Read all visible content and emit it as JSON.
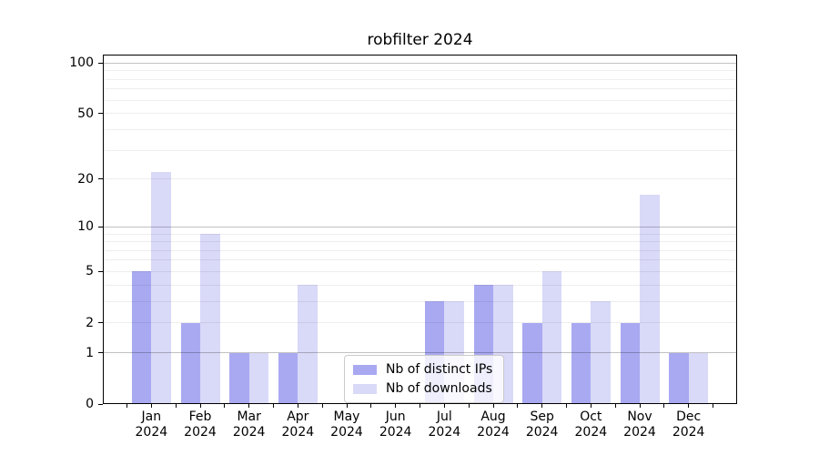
{
  "chart_data": {
    "type": "bar",
    "title": "robfilter 2024",
    "categories": [
      "Jan",
      "Feb",
      "Mar",
      "Apr",
      "May",
      "Jun",
      "Jul",
      "Aug",
      "Sep",
      "Oct",
      "Nov",
      "Dec"
    ],
    "year": "2024",
    "series": [
      {
        "name": "Nb of distinct IPs",
        "color": "#a9a9f2",
        "values": [
          5,
          2,
          1,
          1,
          0,
          0,
          3,
          4,
          2,
          2,
          2,
          1
        ]
      },
      {
        "name": "Nb of downloads",
        "color": "#d9d9f8",
        "values": [
          22,
          9,
          1,
          4,
          0,
          0,
          3,
          4,
          5,
          3,
          16,
          1
        ]
      }
    ],
    "yscale": "log1p",
    "ylim": [
      0,
      113
    ],
    "yticks": [
      0,
      1,
      2,
      5,
      10,
      20,
      50,
      100
    ],
    "major_gridlines": [
      1,
      10,
      100
    ],
    "minor_gridlines": [
      2,
      3,
      4,
      5,
      6,
      7,
      8,
      9,
      20,
      30,
      40,
      50,
      60,
      70,
      80,
      90
    ],
    "grid": true,
    "legend_position": "bottom-center",
    "axis_color": "#000000",
    "background_color": "#ffffff"
  }
}
